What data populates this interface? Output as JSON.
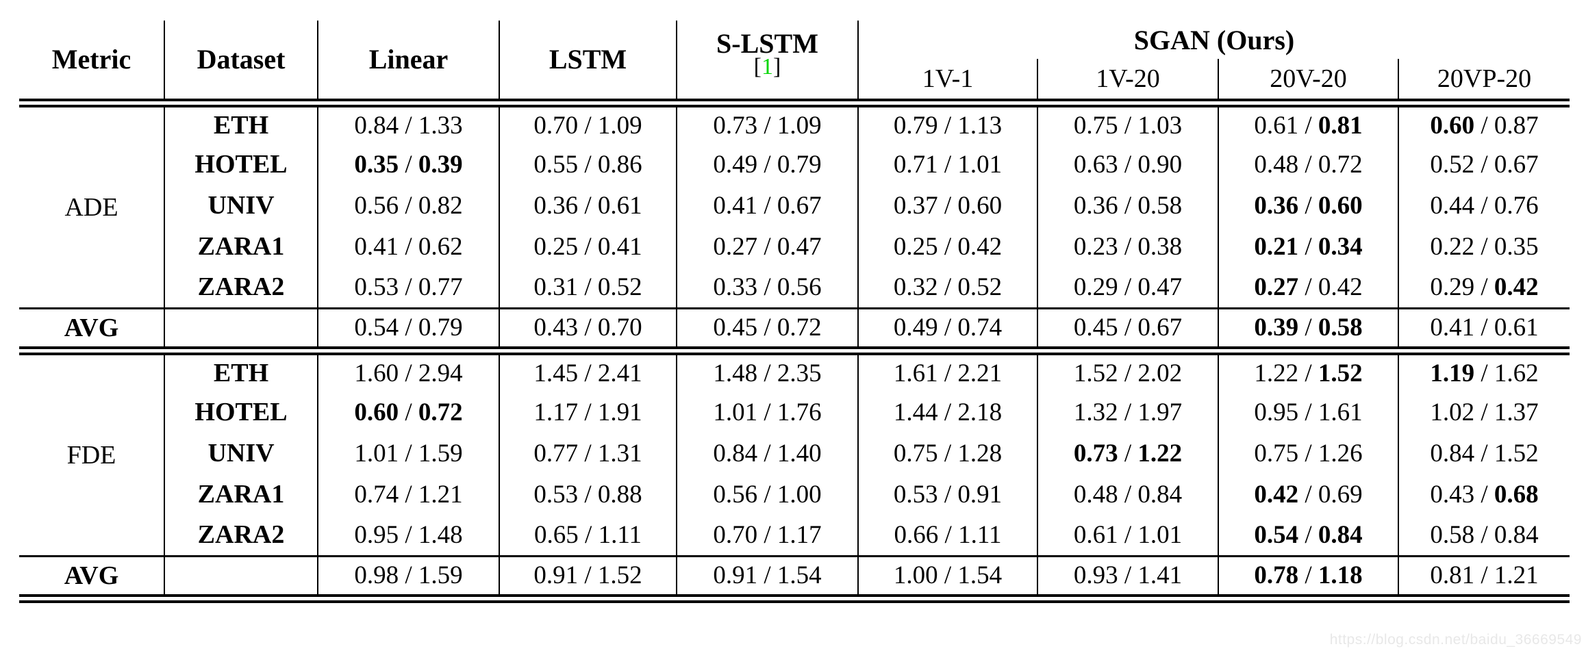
{
  "page": {
    "background": "#ffffff"
  },
  "watermark": {
    "text": "https://blog.csdn.net/baidu_36669549",
    "color": "#e8e8e8"
  },
  "table": {
    "value_separator": " / ",
    "header": {
      "metric": "Metric",
      "dataset": "Dataset",
      "methods": [
        "Linear",
        "LSTM",
        "S-LSTM"
      ],
      "citation": {
        "bracket_open": "[",
        "number": "1",
        "bracket_close": "]",
        "number_color": "#00d600"
      },
      "sgan_group": "SGAN (Ours)",
      "sgan_variants": [
        "1V-1",
        "1V-20",
        "20V-20",
        "20VP-20"
      ]
    },
    "sections": [
      {
        "metric": "ADE",
        "avg_label": "AVG",
        "rows": [
          {
            "dataset": "ETH",
            "cells": [
              [
                "0.84",
                "1.33",
                0,
                0
              ],
              [
                "0.70",
                "1.09",
                0,
                0
              ],
              [
                "0.73",
                "1.09",
                0,
                0
              ],
              [
                "0.79",
                "1.13",
                0,
                0
              ],
              [
                "0.75",
                "1.03",
                0,
                0
              ],
              [
                "0.61",
                "0.81",
                0,
                1
              ],
              [
                "0.60",
                "0.87",
                1,
                0
              ]
            ]
          },
          {
            "dataset": "HOTEL",
            "cells": [
              [
                "0.35",
                "0.39",
                1,
                1
              ],
              [
                "0.55",
                "0.86",
                0,
                0
              ],
              [
                "0.49",
                "0.79",
                0,
                0
              ],
              [
                "0.71",
                "1.01",
                0,
                0
              ],
              [
                "0.63",
                "0.90",
                0,
                0
              ],
              [
                "0.48",
                "0.72",
                0,
                0
              ],
              [
                "0.52",
                "0.67",
                0,
                0
              ]
            ]
          },
          {
            "dataset": "UNIV",
            "cells": [
              [
                "0.56",
                "0.82",
                0,
                0
              ],
              [
                "0.36",
                "0.61",
                0,
                0
              ],
              [
                "0.41",
                "0.67",
                0,
                0
              ],
              [
                "0.37",
                "0.60",
                0,
                0
              ],
              [
                "0.36",
                "0.58",
                0,
                0
              ],
              [
                "0.36",
                "0.60",
                1,
                1
              ],
              [
                "0.44",
                "0.76",
                0,
                0
              ]
            ]
          },
          {
            "dataset": "ZARA1",
            "cells": [
              [
                "0.41",
                "0.62",
                0,
                0
              ],
              [
                "0.25",
                "0.41",
                0,
                0
              ],
              [
                "0.27",
                "0.47",
                0,
                0
              ],
              [
                "0.25",
                "0.42",
                0,
                0
              ],
              [
                "0.23",
                "0.38",
                0,
                0
              ],
              [
                "0.21",
                "0.34",
                1,
                1
              ],
              [
                "0.22",
                "0.35",
                0,
                0
              ]
            ]
          },
          {
            "dataset": "ZARA2",
            "cells": [
              [
                "0.53",
                "0.77",
                0,
                0
              ],
              [
                "0.31",
                "0.52",
                0,
                0
              ],
              [
                "0.33",
                "0.56",
                0,
                0
              ],
              [
                "0.32",
                "0.52",
                0,
                0
              ],
              [
                "0.29",
                "0.47",
                0,
                0
              ],
              [
                "0.27",
                "0.42",
                1,
                0
              ],
              [
                "0.29",
                "0.42",
                0,
                1
              ]
            ]
          }
        ],
        "avg_cells": [
          [
            "0.54",
            "0.79",
            0,
            0
          ],
          [
            "0.43",
            "0.70",
            0,
            0
          ],
          [
            "0.45",
            "0.72",
            0,
            0
          ],
          [
            "0.49",
            "0.74",
            0,
            0
          ],
          [
            "0.45",
            "0.67",
            0,
            0
          ],
          [
            "0.39",
            "0.58",
            1,
            1
          ],
          [
            "0.41",
            "0.61",
            0,
            0
          ]
        ]
      },
      {
        "metric": "FDE",
        "avg_label": "AVG",
        "rows": [
          {
            "dataset": "ETH",
            "cells": [
              [
                "1.60",
                "2.94",
                0,
                0
              ],
              [
                "1.45",
                "2.41",
                0,
                0
              ],
              [
                "1.48",
                "2.35",
                0,
                0
              ],
              [
                "1.61",
                "2.21",
                0,
                0
              ],
              [
                "1.52",
                "2.02",
                0,
                0
              ],
              [
                "1.22",
                "1.52",
                0,
                1
              ],
              [
                "1.19",
                "1.62",
                1,
                0
              ]
            ]
          },
          {
            "dataset": "HOTEL",
            "cells": [
              [
                "0.60",
                "0.72",
                1,
                1
              ],
              [
                "1.17",
                "1.91",
                0,
                0
              ],
              [
                "1.01",
                "1.76",
                0,
                0
              ],
              [
                "1.44",
                "2.18",
                0,
                0
              ],
              [
                "1.32",
                "1.97",
                0,
                0
              ],
              [
                "0.95",
                "1.61",
                0,
                0
              ],
              [
                "1.02",
                "1.37",
                0,
                0
              ]
            ]
          },
          {
            "dataset": "UNIV",
            "cells": [
              [
                "1.01",
                "1.59",
                0,
                0
              ],
              [
                "0.77",
                "1.31",
                0,
                0
              ],
              [
                "0.84",
                "1.40",
                0,
                0
              ],
              [
                "0.75",
                "1.28",
                0,
                0
              ],
              [
                "0.73",
                "1.22",
                1,
                1
              ],
              [
                "0.75",
                "1.26",
                0,
                0
              ],
              [
                "0.84",
                "1.52",
                0,
                0
              ]
            ]
          },
          {
            "dataset": "ZARA1",
            "cells": [
              [
                "0.74",
                "1.21",
                0,
                0
              ],
              [
                "0.53",
                "0.88",
                0,
                0
              ],
              [
                "0.56",
                "1.00",
                0,
                0
              ],
              [
                "0.53",
                "0.91",
                0,
                0
              ],
              [
                "0.48",
                "0.84",
                0,
                0
              ],
              [
                "0.42",
                "0.69",
                1,
                0
              ],
              [
                "0.43",
                "0.68",
                0,
                1
              ]
            ]
          },
          {
            "dataset": "ZARA2",
            "cells": [
              [
                "0.95",
                "1.48",
                0,
                0
              ],
              [
                "0.65",
                "1.11",
                0,
                0
              ],
              [
                "0.70",
                "1.17",
                0,
                0
              ],
              [
                "0.66",
                "1.11",
                0,
                0
              ],
              [
                "0.61",
                "1.01",
                0,
                0
              ],
              [
                "0.54",
                "0.84",
                1,
                1
              ],
              [
                "0.58",
                "0.84",
                0,
                0
              ]
            ]
          }
        ],
        "avg_cells": [
          [
            "0.98",
            "1.59",
            0,
            0
          ],
          [
            "0.91",
            "1.52",
            0,
            0
          ],
          [
            "0.91",
            "1.54",
            0,
            0
          ],
          [
            "1.00",
            "1.54",
            0,
            0
          ],
          [
            "0.93",
            "1.41",
            0,
            0
          ],
          [
            "0.78",
            "1.18",
            1,
            1
          ],
          [
            "0.81",
            "1.21",
            0,
            0
          ]
        ]
      }
    ]
  }
}
